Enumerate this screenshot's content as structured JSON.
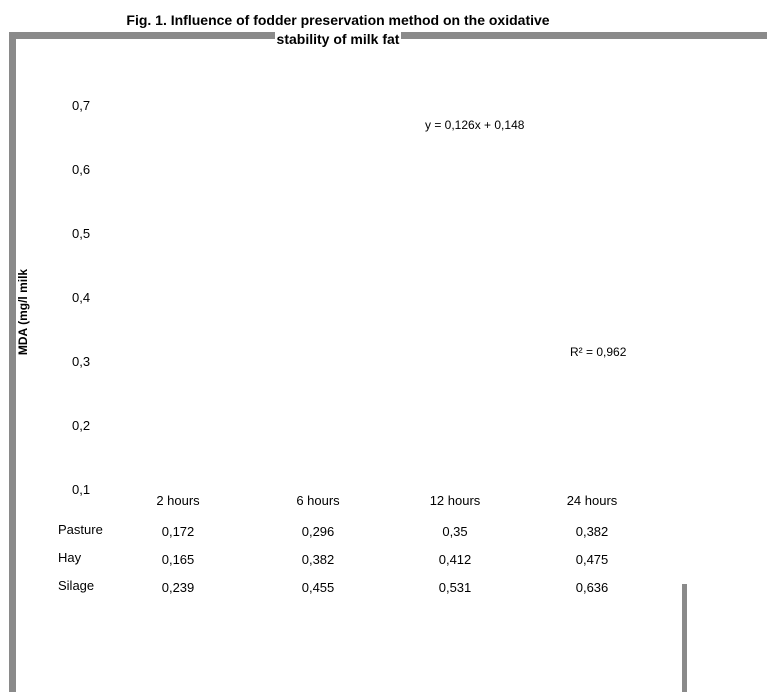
{
  "chart_data": {
    "type": "table",
    "title_line1": "Fig. 1. Influence of fodder preservation method  on the oxidative",
    "title_line2": "stability of milk fat",
    "ylabel": "MDA (mg/l milk",
    "y_ticks": [
      "0,7",
      "0,6",
      "0,5",
      "0,4",
      "0,3",
      "0,2",
      "0,1"
    ],
    "categories": [
      "2 hours",
      "6 hours",
      "12 hours",
      "24 hours"
    ],
    "series": [
      {
        "name": "Pasture",
        "values": [
          0.172,
          0.296,
          0.35,
          0.382
        ],
        "labels": [
          "0,172",
          "0,296",
          "0,35",
          "0,382"
        ]
      },
      {
        "name": "Hay",
        "values": [
          0.165,
          0.382,
          0.412,
          0.475
        ],
        "labels": [
          "0,165",
          "0,382",
          "0,412",
          "0,475"
        ]
      },
      {
        "name": "Silage",
        "values": [
          0.239,
          0.455,
          0.531,
          0.636
        ],
        "labels": [
          "0,239",
          "0,455",
          "0,531",
          "0,636"
        ]
      }
    ],
    "trendline_equation": "y = 0,126x + 0,148",
    "r_squared": "R² = 0,962",
    "grid": false
  }
}
